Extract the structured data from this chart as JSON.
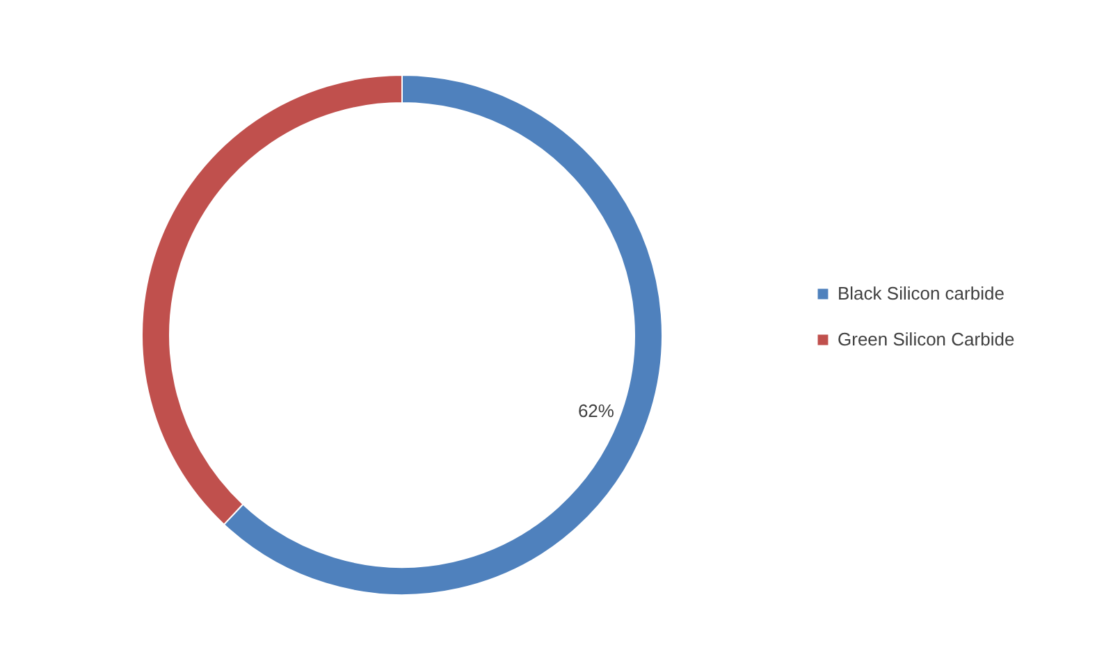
{
  "chart_data": {
    "type": "donut",
    "categories": [
      "Black Silicon carbide",
      "Green Silicon Carbide"
    ],
    "values": [
      62,
      38
    ],
    "colors": [
      "#4f81bd",
      "#c0504d"
    ],
    "value_labels": [
      "62%",
      null
    ],
    "legend": "right"
  }
}
